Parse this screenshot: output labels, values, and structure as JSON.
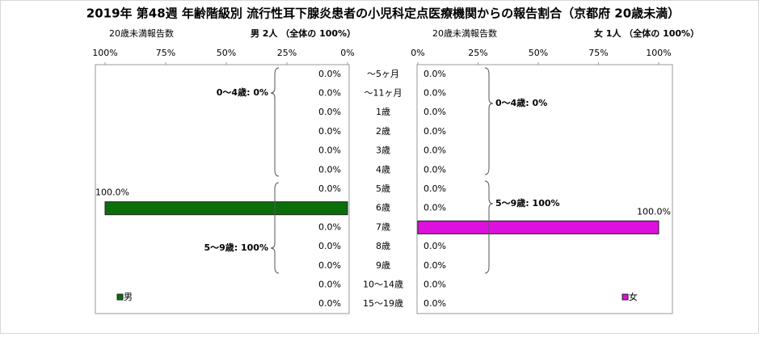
{
  "chart_data": {
    "type": "bar",
    "title": "2019年 第48週 年齢階級別 流行性耳下腺炎患者の小児科定点医療機関からの報告割合（京都府 20歳未満）",
    "categories": [
      "～5ヶ月",
      "～11ヶ月",
      "1歳",
      "2歳",
      "3歳",
      "4歳",
      "5歳",
      "6歳",
      "7歳",
      "8歳",
      "9歳",
      "10～14歳",
      "15～19歳"
    ],
    "xlim": [
      0,
      100
    ],
    "xticks": [
      {
        "value": 0,
        "label": "0%"
      },
      {
        "value": 25,
        "label": "25%"
      },
      {
        "value": 50,
        "label": "50%"
      },
      {
        "value": 75,
        "label": "75%"
      },
      {
        "value": 100,
        "label": "100%"
      }
    ],
    "series": [
      {
        "name": "男",
        "color": "#0b6e0b",
        "label": "20歳未満報告数",
        "summary": "男  2人 （全体の  100%）",
        "values": [
          0,
          0,
          0,
          0,
          0,
          0,
          0,
          100,
          0,
          0,
          0,
          0,
          0
        ],
        "value_labels": [
          "0.0%",
          "0.0%",
          "0.0%",
          "0.0%",
          "0.0%",
          "0.0%",
          "0.0%",
          "100.0%",
          "0.0%",
          "0.0%",
          "0.0%",
          "0.0%",
          "0.0%"
        ],
        "annotations": [
          "0～4歳: 0%",
          "5～9歳: 100%"
        ]
      },
      {
        "name": "女",
        "color": "#dd11dd",
        "label": "20歳未満報告数",
        "summary": "女  1人 （全体の  100%）",
        "values": [
          0,
          0,
          0,
          0,
          0,
          0,
          0,
          0,
          100,
          0,
          0,
          0,
          0
        ],
        "value_labels": [
          "0.0%",
          "0.0%",
          "0.0%",
          "0.0%",
          "0.0%",
          "0.0%",
          "0.0%",
          "0.0%",
          "100.0%",
          "0.0%",
          "0.0%",
          "0.0%",
          "0.0%"
        ],
        "annotations": [
          "0～4歳: 0%",
          "5～9歳: 100%"
        ]
      }
    ]
  }
}
